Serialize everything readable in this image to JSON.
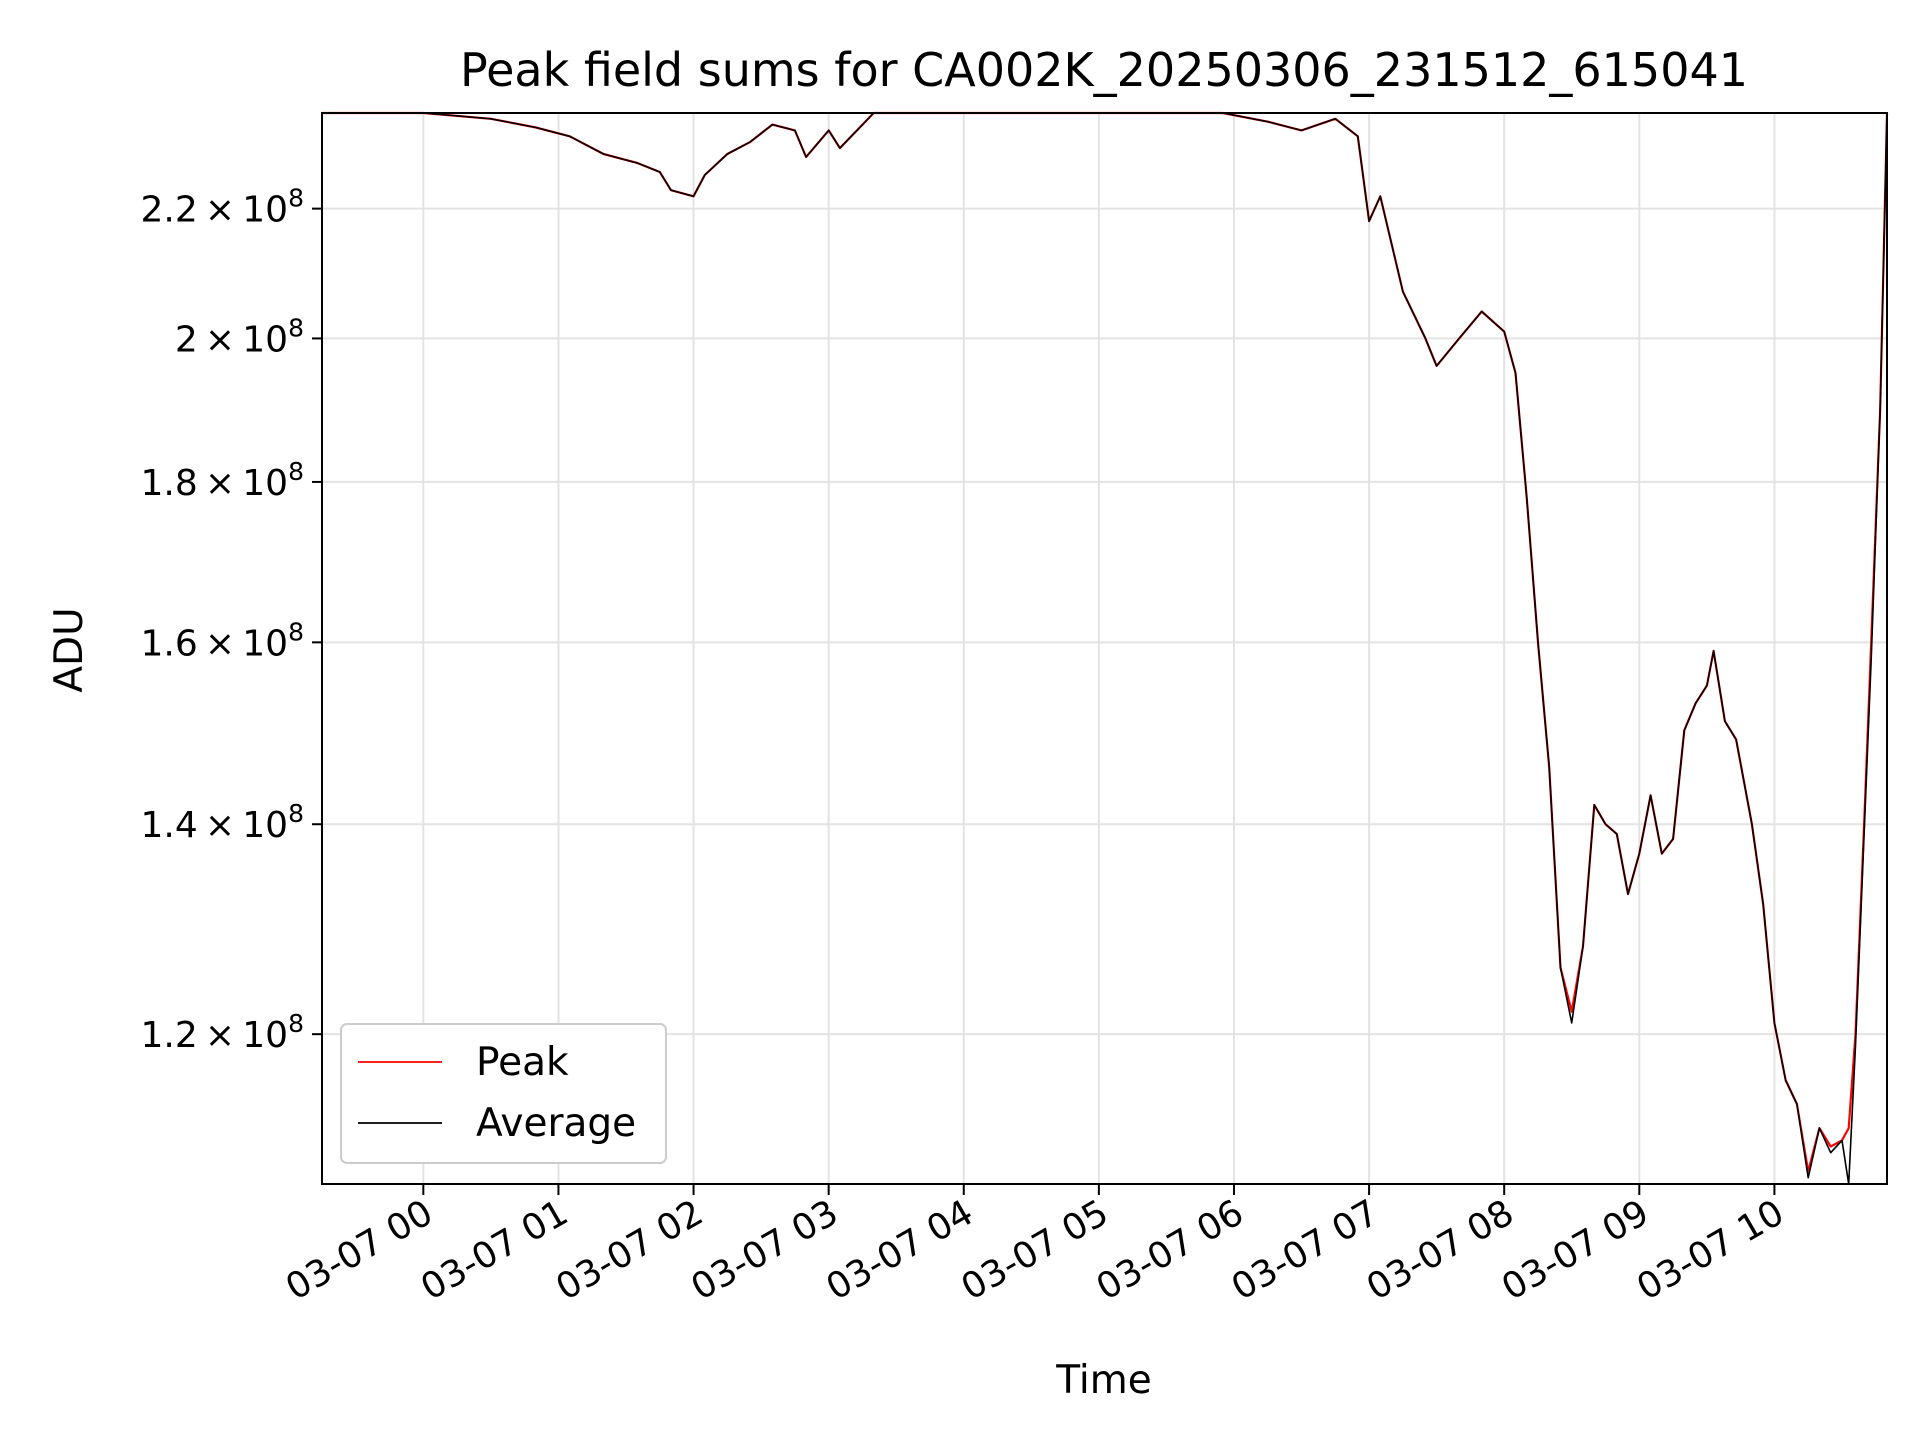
{
  "chart_data": {
    "type": "line",
    "title": "Peak field sums for CA002K_20250306_231512_615041",
    "xlabel": "Time",
    "ylabel": "ADU",
    "x_tick_labels": [
      "03-07 00",
      "03-07 01",
      "03-07 02",
      "03-07 03",
      "03-07 04",
      "03-07 05",
      "03-07 06",
      "03-07 07",
      "03-07 08",
      "03-07 09",
      "03-07 10"
    ],
    "y_scale": "log",
    "y_tick_labels": [
      {
        "value": 120000000,
        "mantissa": "1.2",
        "exponent": "8"
      },
      {
        "value": 140000000,
        "mantissa": "1.4",
        "exponent": "8"
      },
      {
        "value": 160000000,
        "mantissa": "1.6",
        "exponent": "8"
      },
      {
        "value": 180000000,
        "mantissa": "1.8",
        "exponent": "8"
      },
      {
        "value": 200000000,
        "mantissa": "2",
        "exponent": "8"
      },
      {
        "value": 220000000,
        "mantissa": "2.2",
        "exponent": "8"
      }
    ],
    "xlim": [
      "03-06 23:15",
      "03-07 10:50"
    ],
    "ylim": [
      107500000,
      236000000
    ],
    "grid": true,
    "legend_position": "lower-left",
    "series": [
      {
        "name": "Peak",
        "color": "#ff0000",
        "points": [
          [
            "03-06 23:15",
            236000000
          ],
          [
            "03-07 00:00",
            236000000
          ],
          [
            "03-07 00:30",
            235000000
          ],
          [
            "03-07 00:50",
            233500000
          ],
          [
            "03-07 01:05",
            232000000
          ],
          [
            "03-07 01:20",
            229000000
          ],
          [
            "03-07 01:35",
            227500000
          ],
          [
            "03-07 01:45",
            226000000
          ],
          [
            "03-07 01:50",
            223000000
          ],
          [
            "03-07 02:00",
            222000000
          ],
          [
            "03-07 02:05",
            225500000
          ],
          [
            "03-07 02:15",
            229000000
          ],
          [
            "03-07 02:25",
            231000000
          ],
          [
            "03-07 02:35",
            234000000
          ],
          [
            "03-07 02:45",
            233000000
          ],
          [
            "03-07 02:50",
            228500000
          ],
          [
            "03-07 03:00",
            233000000
          ],
          [
            "03-07 03:05",
            230000000
          ],
          [
            "03-07 03:20",
            236000000
          ],
          [
            "03-07 05:55",
            236000000
          ],
          [
            "03-07 06:15",
            234500000
          ],
          [
            "03-07 06:30",
            233000000
          ],
          [
            "03-07 06:45",
            235000000
          ],
          [
            "03-07 06:55",
            232000000
          ],
          [
            "03-07 07:00",
            218000000
          ],
          [
            "03-07 07:05",
            222000000
          ],
          [
            "03-07 07:15",
            207000000
          ],
          [
            "03-07 07:25",
            200000000
          ],
          [
            "03-07 07:30",
            196000000
          ],
          [
            "03-07 07:40",
            200000000
          ],
          [
            "03-07 07:50",
            204000000
          ],
          [
            "03-07 08:00",
            201000000
          ],
          [
            "03-07 08:05",
            195000000
          ],
          [
            "03-07 08:10",
            178000000
          ],
          [
            "03-07 08:15",
            160000000
          ],
          [
            "03-07 08:20",
            146000000
          ],
          [
            "03-07 08:25",
            126000000
          ],
          [
            "03-07 08:30",
            122000000
          ],
          [
            "03-07 08:35",
            128000000
          ],
          [
            "03-07 08:40",
            142000000
          ],
          [
            "03-07 08:45",
            140000000
          ],
          [
            "03-07 08:50",
            139000000
          ],
          [
            "03-07 08:55",
            133000000
          ],
          [
            "03-07 09:00",
            137000000
          ],
          [
            "03-07 09:05",
            143000000
          ],
          [
            "03-07 09:10",
            137000000
          ],
          [
            "03-07 09:15",
            138500000
          ],
          [
            "03-07 09:20",
            150000000
          ],
          [
            "03-07 09:25",
            153000000
          ],
          [
            "03-07 09:30",
            155000000
          ],
          [
            "03-07 09:33",
            159000000
          ],
          [
            "03-07 09:38",
            151000000
          ],
          [
            "03-07 09:43",
            149000000
          ],
          [
            "03-07 09:50",
            140000000
          ],
          [
            "03-07 09:55",
            132000000
          ],
          [
            "03-07 10:00",
            121000000
          ],
          [
            "03-07 10:05",
            116000000
          ],
          [
            "03-07 10:10",
            114000000
          ],
          [
            "03-07 10:15",
            108500000
          ],
          [
            "03-07 10:20",
            112000000
          ],
          [
            "03-07 10:25",
            110500000
          ],
          [
            "03-07 10:30",
            111000000
          ],
          [
            "03-07 10:33",
            112000000
          ],
          [
            "03-07 10:36",
            120000000
          ],
          [
            "03-07 10:40",
            141000000
          ],
          [
            "03-07 10:43",
            160000000
          ],
          [
            "03-07 10:47",
            190000000
          ],
          [
            "03-07 10:50",
            236000000
          ]
        ]
      },
      {
        "name": "Average",
        "color": "#000000",
        "points": [
          [
            "03-06 23:15",
            236000000
          ],
          [
            "03-07 00:00",
            236000000
          ],
          [
            "03-07 00:30",
            235000000
          ],
          [
            "03-07 00:50",
            233500000
          ],
          [
            "03-07 01:05",
            232000000
          ],
          [
            "03-07 01:20",
            229000000
          ],
          [
            "03-07 01:35",
            227500000
          ],
          [
            "03-07 01:45",
            226000000
          ],
          [
            "03-07 01:50",
            223000000
          ],
          [
            "03-07 02:00",
            222000000
          ],
          [
            "03-07 02:05",
            225500000
          ],
          [
            "03-07 02:15",
            229000000
          ],
          [
            "03-07 02:25",
            231000000
          ],
          [
            "03-07 02:35",
            234000000
          ],
          [
            "03-07 02:45",
            233000000
          ],
          [
            "03-07 02:50",
            228500000
          ],
          [
            "03-07 03:00",
            233000000
          ],
          [
            "03-07 03:05",
            230000000
          ],
          [
            "03-07 03:20",
            236000000
          ],
          [
            "03-07 05:55",
            236000000
          ],
          [
            "03-07 06:15",
            234500000
          ],
          [
            "03-07 06:30",
            233000000
          ],
          [
            "03-07 06:45",
            235000000
          ],
          [
            "03-07 06:55",
            232000000
          ],
          [
            "03-07 07:00",
            218000000
          ],
          [
            "03-07 07:05",
            222000000
          ],
          [
            "03-07 07:15",
            207000000
          ],
          [
            "03-07 07:25",
            200000000
          ],
          [
            "03-07 07:30",
            196000000
          ],
          [
            "03-07 07:40",
            200000000
          ],
          [
            "03-07 07:50",
            204000000
          ],
          [
            "03-07 08:00",
            201000000
          ],
          [
            "03-07 08:05",
            195000000
          ],
          [
            "03-07 08:10",
            178000000
          ],
          [
            "03-07 08:15",
            160000000
          ],
          [
            "03-07 08:20",
            146000000
          ],
          [
            "03-07 08:25",
            126000000
          ],
          [
            "03-07 08:30",
            121000000
          ],
          [
            "03-07 08:35",
            128000000
          ],
          [
            "03-07 08:40",
            142000000
          ],
          [
            "03-07 08:45",
            140000000
          ],
          [
            "03-07 08:50",
            139000000
          ],
          [
            "03-07 08:55",
            133000000
          ],
          [
            "03-07 09:00",
            137000000
          ],
          [
            "03-07 09:05",
            143000000
          ],
          [
            "03-07 09:10",
            137000000
          ],
          [
            "03-07 09:15",
            138500000
          ],
          [
            "03-07 09:20",
            150000000
          ],
          [
            "03-07 09:25",
            153000000
          ],
          [
            "03-07 09:30",
            155000000
          ],
          [
            "03-07 09:33",
            159000000
          ],
          [
            "03-07 09:38",
            151000000
          ],
          [
            "03-07 09:43",
            149000000
          ],
          [
            "03-07 09:50",
            140000000
          ],
          [
            "03-07 09:55",
            132000000
          ],
          [
            "03-07 10:00",
            121000000
          ],
          [
            "03-07 10:05",
            116000000
          ],
          [
            "03-07 10:10",
            114000000
          ],
          [
            "03-07 10:15",
            108000000
          ],
          [
            "03-07 10:20",
            112000000
          ],
          [
            "03-07 10:25",
            110000000
          ],
          [
            "03-07 10:30",
            111000000
          ],
          [
            "03-07 10:33",
            107500000
          ],
          [
            "03-07 10:36",
            119000000
          ],
          [
            "03-07 10:40",
            140000000
          ],
          [
            "03-07 10:43",
            158000000
          ],
          [
            "03-07 10:47",
            190000000
          ],
          [
            "03-07 10:50",
            236000000
          ]
        ]
      }
    ]
  }
}
